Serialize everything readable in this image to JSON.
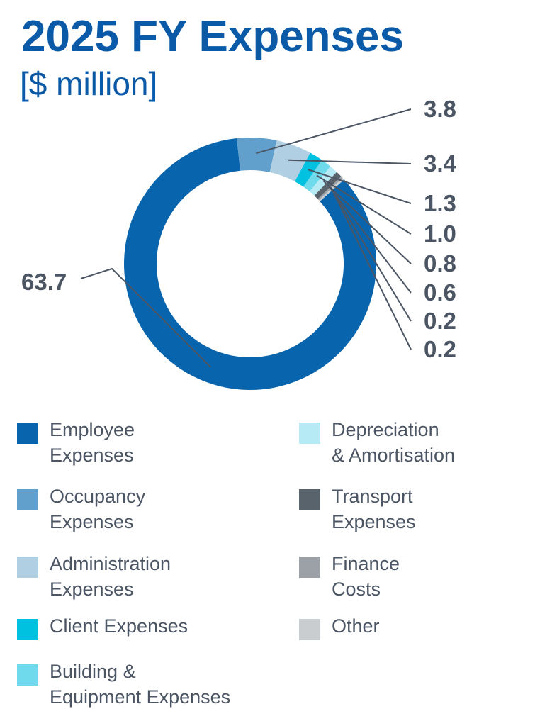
{
  "chart_data": {
    "type": "pie",
    "variant": "donut",
    "title": "2025 FY Expenses",
    "subtitle": "[$ million]",
    "categories": [
      "Employee Expenses",
      "Occupancy Expenses",
      "Administration Expenses",
      "Client Expenses",
      "Building & Equipment Expenses",
      "Depreciation & Amortisation",
      "Transport Expenses",
      "Finance Costs",
      "Other"
    ],
    "values": [
      63.7,
      3.8,
      3.4,
      1.3,
      1.0,
      0.8,
      0.6,
      0.2,
      0.2
    ],
    "value_labels": [
      "63.7",
      "3.8",
      "3.4",
      "1.3",
      "1.0",
      "0.8",
      "0.6",
      "0.2",
      "0.2"
    ],
    "colors": [
      "#0865ad",
      "#61a0cc",
      "#b0cfe3",
      "#00c2e0",
      "#6fdaec",
      "#b6ebf5",
      "#59636b",
      "#9ba1a6",
      "#cacdd0"
    ],
    "legend": {
      "columns": [
        [
          {
            "lines": [
              "Employee",
              "Expenses"
            ],
            "color": "#0865ad"
          },
          {
            "lines": [
              "Occupancy",
              "Expenses"
            ],
            "color": "#61a0cc"
          },
          {
            "lines": [
              "Administration",
              "Expenses"
            ],
            "color": "#b0cfe3"
          },
          {
            "lines": [
              "Client Expenses"
            ],
            "color": "#00c2e0"
          },
          {
            "lines": [
              "Building &",
              "Equipment Expenses"
            ],
            "color": "#6fdaec"
          }
        ],
        [
          {
            "lines": [
              "Depreciation",
              "& Amortisation"
            ],
            "color": "#b6ebf5"
          },
          {
            "lines": [
              "Transport",
              "Expenses"
            ],
            "color": "#59636b"
          },
          {
            "lines": [
              "Finance",
              "Costs"
            ],
            "color": "#9ba1a6"
          },
          {
            "lines": [
              "Other"
            ],
            "color": "#cacdd0"
          }
        ]
      ]
    }
  }
}
